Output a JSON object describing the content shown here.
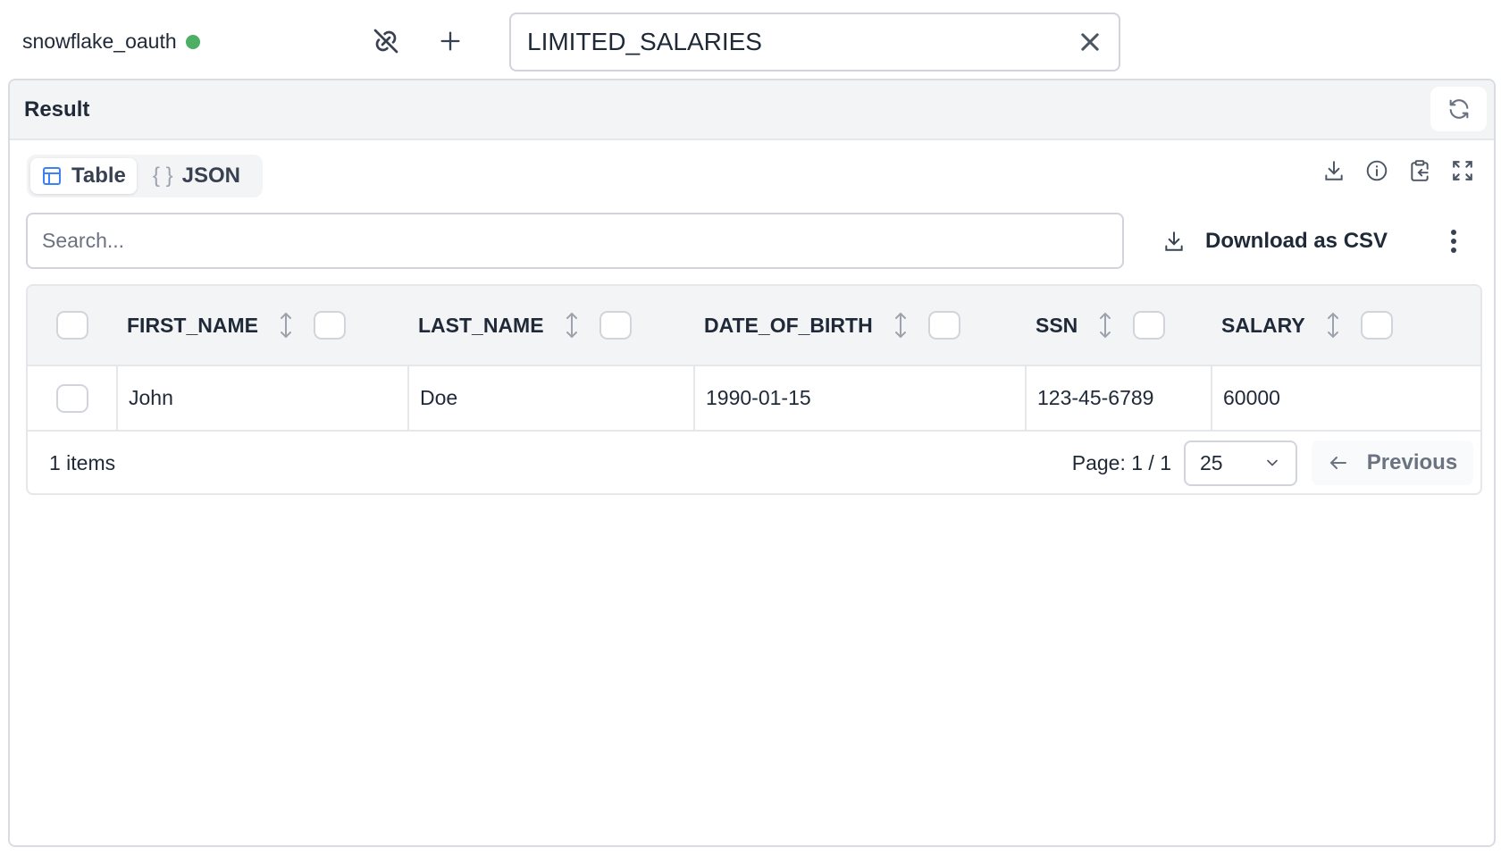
{
  "connection": {
    "name": "snowflake_oauth",
    "status_color": "#4caf65",
    "status": "connected"
  },
  "toolbar": {
    "unlink_icon": "link-off-icon",
    "add_icon": "plus-icon"
  },
  "query_tab": {
    "value": "LIMITED_SALARIES",
    "close_icon": "x-icon"
  },
  "panel": {
    "title": "Result",
    "refresh_icon": "refresh-icon"
  },
  "view_tabs": [
    {
      "label": "Table",
      "icon": "table-icon",
      "active": true
    },
    {
      "label": "JSON",
      "icon": "braces-icon",
      "active": false
    }
  ],
  "actions": {
    "icons": [
      "download-icon",
      "info-icon",
      "clipboard-icon",
      "expand-icon"
    ],
    "download_csv": "Download as CSV"
  },
  "search": {
    "placeholder": "Search...",
    "value": ""
  },
  "table": {
    "columns": [
      "FIRST_NAME",
      "LAST_NAME",
      "DATE_OF_BIRTH",
      "SSN",
      "SALARY"
    ],
    "rows": [
      [
        "John",
        "Doe",
        "1990-01-15",
        "123-45-6789",
        "60000"
      ]
    ]
  },
  "footer": {
    "count": "1 items",
    "page": "Page: 1 / 1",
    "page_size": "25",
    "previous": "Previous"
  },
  "colors": {
    "accent": "#3b82f6",
    "text": "#1f2937",
    "border": "#e5e7eb"
  }
}
